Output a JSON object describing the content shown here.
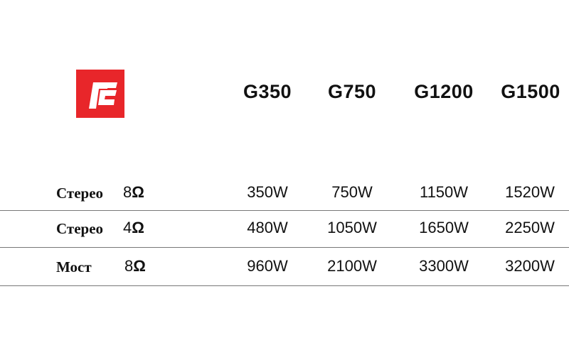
{
  "brand": {
    "logo_text": "rE",
    "color": "#e8262a"
  },
  "table": {
    "columns": [
      "G350",
      "G750",
      "G1200",
      "G1500"
    ],
    "rows": [
      {
        "mode": "Стерео",
        "impedance": "8",
        "unit": "Ω",
        "values": [
          "350W",
          "750W",
          "1150W",
          "1520W"
        ]
      },
      {
        "mode": "Стерео",
        "impedance": "4",
        "unit": "Ω",
        "values": [
          "480W",
          "1050W",
          "1650W",
          "2250W"
        ]
      },
      {
        "mode": "Мост",
        "impedance": "8",
        "unit": "Ω",
        "values": [
          "960W",
          "2100W",
          "3300W",
          "3200W"
        ]
      }
    ]
  }
}
